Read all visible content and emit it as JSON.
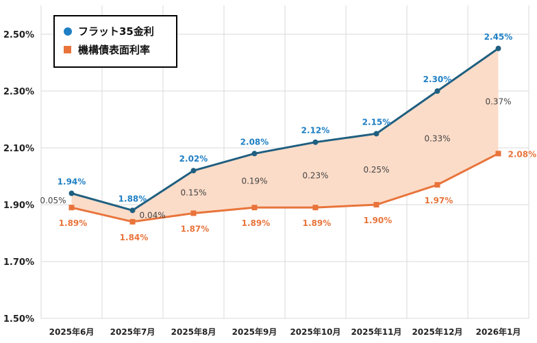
{
  "chart_data": {
    "type": "line",
    "categories": [
      "2025年6月",
      "2025年7月",
      "2025年8月",
      "2025年9月",
      "2025年10月",
      "2025年11月",
      "2025年12月",
      "2026年1月"
    ],
    "series": [
      {
        "name": "フラット35金利",
        "values": [
          1.94,
          1.88,
          2.02,
          2.08,
          2.12,
          2.15,
          2.3,
          2.45
        ],
        "labels": [
          "1.94%",
          "1.88%",
          "2.02%",
          "2.08%",
          "2.12%",
          "2.15%",
          "2.30%",
          "2.45%"
        ],
        "color": "#1f5f80",
        "label_color": "#1f7fc4",
        "marker": "circle"
      },
      {
        "name": "機構債表面利率",
        "values": [
          1.89,
          1.84,
          1.87,
          1.89,
          1.89,
          1.9,
          1.97,
          2.08
        ],
        "labels": [
          "1.89%",
          "1.84%",
          "1.87%",
          "1.89%",
          "1.89%",
          "1.90%",
          "1.97%",
          "2.08%"
        ],
        "color": "#e8743b",
        "label_color": "#e8743b",
        "marker": "square"
      }
    ],
    "spread": {
      "values": [
        0.05,
        0.04,
        0.15,
        0.19,
        0.23,
        0.25,
        0.33,
        0.37
      ],
      "labels": [
        "0.05%",
        "0.04%",
        "0.15%",
        "0.19%",
        "0.23%",
        "0.25%",
        "0.33%",
        "0.37%"
      ],
      "fill_color": "#fbdcc8"
    },
    "y_ticks": [
      "2.50%",
      "2.30%",
      "2.10%",
      "1.90%",
      "1.70%",
      "1.50%"
    ],
    "ylim": [
      1.5,
      2.5
    ],
    "grid": true,
    "legend_position": "top-left"
  }
}
